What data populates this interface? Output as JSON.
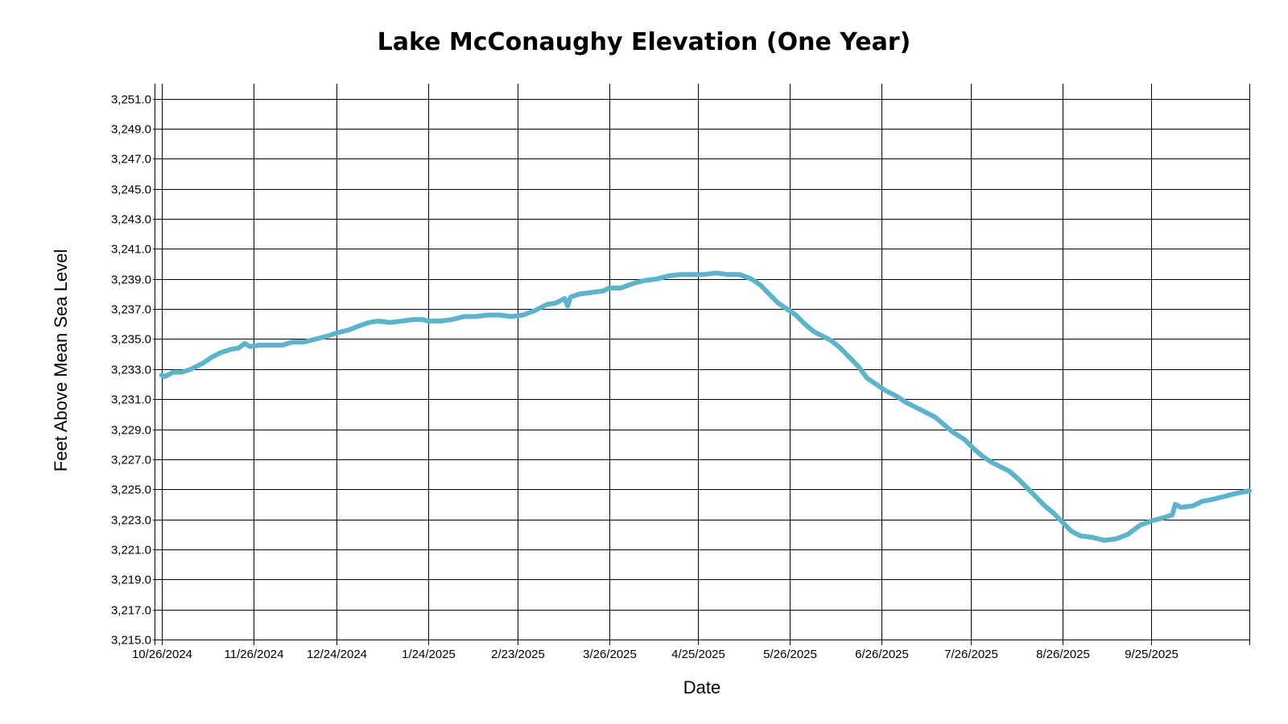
{
  "chart_data": {
    "type": "line",
    "title": "Lake McConaughy Elevation (One Year)",
    "xlabel": "Date",
    "ylabel": "Feet Above Mean Sea Level",
    "line_color": "#5ab4cc",
    "grid": true,
    "xlim": [
      "10/25/2024",
      "10/28/2025"
    ],
    "ylim": [
      3215.0,
      3252.0
    ],
    "x_ticks": [
      "10/26/2024",
      "11/26/2024",
      "12/24/2024",
      "1/24/2025",
      "2/23/2025",
      "3/26/2025",
      "4/25/2025",
      "5/26/2025",
      "6/26/2025",
      "7/26/2025",
      "8/26/2025",
      "9/25/2025"
    ],
    "y_ticks": [
      "3,215.0",
      "3,217.0",
      "3,219.0",
      "3,221.0",
      "3,223.0",
      "3,225.0",
      "3,227.0",
      "3,229.0",
      "3,231.0",
      "3,233.0",
      "3,235.0",
      "3,237.0",
      "3,239.0",
      "3,241.0",
      "3,243.0",
      "3,245.0",
      "3,247.0",
      "3,249.0",
      "3,251.0"
    ],
    "series": [
      {
        "points": [
          [
            "10/26/2024",
            3232.6
          ],
          [
            "10/27/2024",
            3232.5
          ],
          [
            "10/30/2024",
            3232.8
          ],
          [
            "11/2/2024",
            3232.8
          ],
          [
            "11/5/2024",
            3233.0
          ],
          [
            "11/9/2024",
            3233.4
          ],
          [
            "11/12/2024",
            3233.8
          ],
          [
            "11/15/2024",
            3234.1
          ],
          [
            "11/18/2024",
            3234.3
          ],
          [
            "11/21/2024",
            3234.4
          ],
          [
            "11/23/2024",
            3234.7
          ],
          [
            "11/25/2024",
            3234.5
          ],
          [
            "11/28/2024",
            3234.6
          ],
          [
            "12/2/2024",
            3234.6
          ],
          [
            "12/6/2024",
            3234.6
          ],
          [
            "12/9/2024",
            3234.8
          ],
          [
            "12/13/2024",
            3234.8
          ],
          [
            "12/17/2024",
            3235.0
          ],
          [
            "12/21/2024",
            3235.2
          ],
          [
            "12/24/2024",
            3235.4
          ],
          [
            "12/28/2024",
            3235.6
          ],
          [
            "1/1/2025",
            3235.9
          ],
          [
            "1/4/2025",
            3236.1
          ],
          [
            "1/7/2025",
            3236.2
          ],
          [
            "1/11/2025",
            3236.1
          ],
          [
            "1/15/2025",
            3236.2
          ],
          [
            "1/19/2025",
            3236.3
          ],
          [
            "1/22/2025",
            3236.3
          ],
          [
            "1/24/2025",
            3236.2
          ],
          [
            "1/28/2025",
            3236.2
          ],
          [
            "2/1/2025",
            3236.3
          ],
          [
            "2/5/2025",
            3236.5
          ],
          [
            "2/9/2025",
            3236.5
          ],
          [
            "2/13/2025",
            3236.6
          ],
          [
            "2/17/2025",
            3236.6
          ],
          [
            "2/21/2025",
            3236.5
          ],
          [
            "2/25/2025",
            3236.6
          ],
          [
            "3/1/2025",
            3236.9
          ],
          [
            "3/5/2025",
            3237.3
          ],
          [
            "3/8/2025",
            3237.4
          ],
          [
            "3/11/2025",
            3237.7
          ],
          [
            "3/12/2025",
            3237.2
          ],
          [
            "3/13/2025",
            3237.8
          ],
          [
            "3/16/2025",
            3238.0
          ],
          [
            "3/20/2025",
            3238.1
          ],
          [
            "3/24/2025",
            3238.2
          ],
          [
            "3/26/2025",
            3238.4
          ],
          [
            "3/30/2025",
            3238.4
          ],
          [
            "4/3/2025",
            3238.7
          ],
          [
            "4/7/2025",
            3238.9
          ],
          [
            "4/11/2025",
            3239.0
          ],
          [
            "4/15/2025",
            3239.2
          ],
          [
            "4/19/2025",
            3239.3
          ],
          [
            "4/23/2025",
            3239.3
          ],
          [
            "4/27/2025",
            3239.3
          ],
          [
            "5/1/2025",
            3239.4
          ],
          [
            "5/5/2025",
            3239.3
          ],
          [
            "5/9/2025",
            3239.3
          ],
          [
            "5/13/2025",
            3239.0
          ],
          [
            "5/16/2025",
            3238.6
          ],
          [
            "5/19/2025",
            3238.0
          ],
          [
            "5/22/2025",
            3237.4
          ],
          [
            "5/25/2025",
            3237.0
          ],
          [
            "5/28/2025",
            3236.6
          ],
          [
            "5/31/2025",
            3236.0
          ],
          [
            "6/3/2025",
            3235.5
          ],
          [
            "6/6/2025",
            3235.2
          ],
          [
            "6/9/2025",
            3234.9
          ],
          [
            "6/12/2025",
            3234.4
          ],
          [
            "6/15/2025",
            3233.8
          ],
          [
            "6/18/2025",
            3233.2
          ],
          [
            "6/21/2025",
            3232.4
          ],
          [
            "6/24/2025",
            3232.0
          ],
          [
            "6/27/2025",
            3231.6
          ],
          [
            "7/1/2025",
            3231.2
          ],
          [
            "7/4/2025",
            3230.8
          ],
          [
            "7/7/2025",
            3230.5
          ],
          [
            "7/10/2025",
            3230.2
          ],
          [
            "7/14/2025",
            3229.8
          ],
          [
            "7/17/2025",
            3229.3
          ],
          [
            "7/20/2025",
            3228.8
          ],
          [
            "7/24/2025",
            3228.3
          ],
          [
            "7/27/2025",
            3227.7
          ],
          [
            "7/30/2025",
            3227.2
          ],
          [
            "8/2/2025",
            3226.8
          ],
          [
            "8/5/2025",
            3226.5
          ],
          [
            "8/8/2025",
            3226.2
          ],
          [
            "8/11/2025",
            3225.7
          ],
          [
            "8/14/2025",
            3225.1
          ],
          [
            "8/17/2025",
            3224.5
          ],
          [
            "8/20/2025",
            3223.9
          ],
          [
            "8/23/2025",
            3223.4
          ],
          [
            "8/26/2025",
            3222.8
          ],
          [
            "8/29/2025",
            3222.2
          ],
          [
            "9/1/2025",
            3221.9
          ],
          [
            "9/5/2025",
            3221.8
          ],
          [
            "9/9/2025",
            3221.6
          ],
          [
            "9/13/2025",
            3221.7
          ],
          [
            "9/17/2025",
            3222.0
          ],
          [
            "9/21/2025",
            3222.6
          ],
          [
            "9/25/2025",
            3222.9
          ],
          [
            "9/29/2025",
            3223.1
          ],
          [
            "10/2/2025",
            3223.3
          ],
          [
            "10/3/2025",
            3224.0
          ],
          [
            "10/5/2025",
            3223.8
          ],
          [
            "10/9/2025",
            3223.9
          ],
          [
            "10/12/2025",
            3224.2
          ],
          [
            "10/15/2025",
            3224.3
          ],
          [
            "10/19/2025",
            3224.5
          ],
          [
            "10/23/2025",
            3224.7
          ],
          [
            "10/28/2025",
            3224.9
          ]
        ]
      }
    ]
  }
}
